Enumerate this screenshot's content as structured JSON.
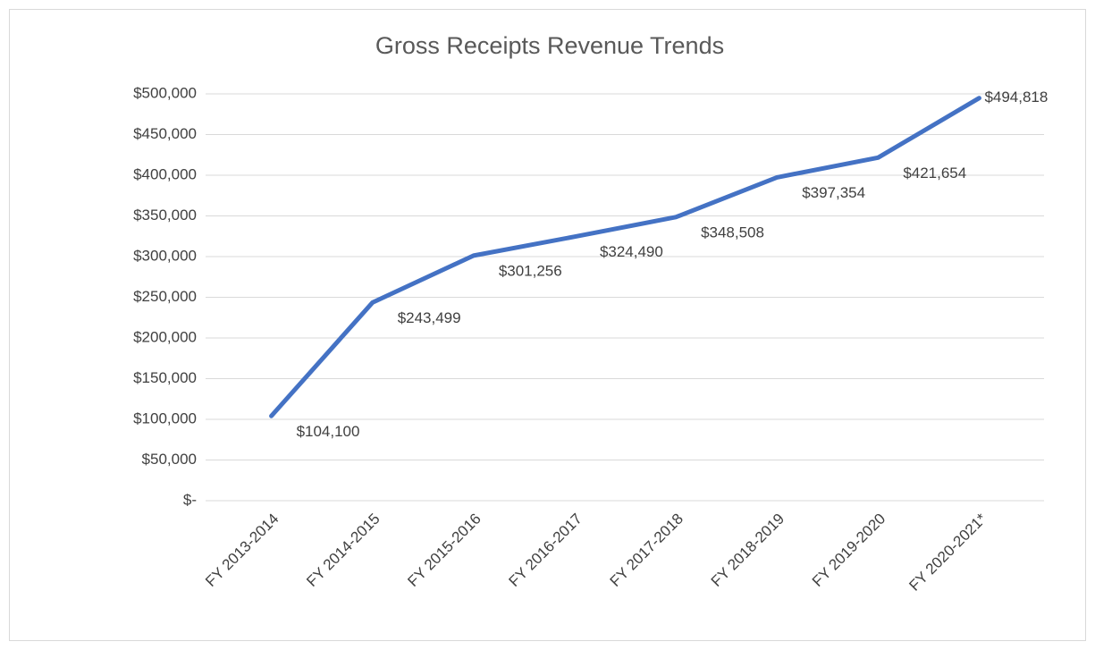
{
  "chart_data": {
    "type": "line",
    "title": "Gross Receipts Revenue Trends",
    "categories": [
      "FY 2013-2014",
      "FY 2014-2015",
      "FY 2015-2016",
      "FY 2016-2017",
      "FY 2017-2018",
      "FY 2018-2019",
      "FY 2019-2020",
      "FY 2020-2021*"
    ],
    "values": [
      104100,
      243499,
      301256,
      324490,
      348508,
      397354,
      421654,
      494818
    ],
    "value_labels": [
      "$104,100",
      "$243,499",
      "$301,256",
      "$324,490",
      "$348,508",
      "$397,354",
      "$421,654",
      "$494,818"
    ],
    "color": "#4472c4",
    "ylim": [
      0,
      500000
    ],
    "yticks": [
      {
        "value": 0,
        "label": "$-"
      },
      {
        "value": 50000,
        "label": "$50,000"
      },
      {
        "value": 100000,
        "label": "$100,000"
      },
      {
        "value": 150000,
        "label": "$150,000"
      },
      {
        "value": 200000,
        "label": "$200,000"
      },
      {
        "value": 250000,
        "label": "$250,000"
      },
      {
        "value": 300000,
        "label": "$300,000"
      },
      {
        "value": 350000,
        "label": "$350,000"
      },
      {
        "value": 400000,
        "label": "$400,000"
      },
      {
        "value": 450000,
        "label": "$450,000"
      },
      {
        "value": 500000,
        "label": "$500,000"
      }
    ],
    "grid": true
  }
}
